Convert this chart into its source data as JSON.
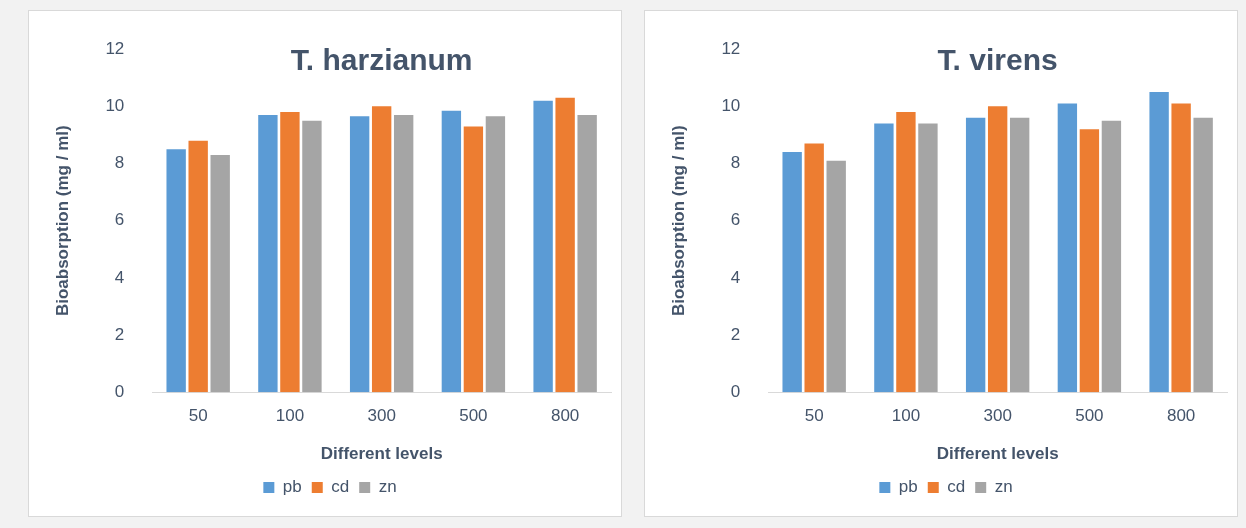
{
  "chart_data": [
    {
      "type": "bar",
      "title": "T. harzianum",
      "xlabel": "Different levels",
      "ylabel": "Bioabsorption (mg / ml)",
      "categories": [
        "50",
        "100",
        "300",
        "500",
        "800"
      ],
      "series": [
        {
          "name": "pb",
          "color": "#5b9bd5",
          "values": [
            8.5,
            9.7,
            9.65,
            9.85,
            10.2
          ]
        },
        {
          "name": "cd",
          "color": "#ed7d31",
          "values": [
            8.8,
            9.8,
            10.0,
            9.3,
            10.3
          ]
        },
        {
          "name": "zn",
          "color": "#a5a5a5",
          "values": [
            8.3,
            9.5,
            9.7,
            9.65,
            9.7
          ]
        }
      ],
      "ylim": [
        0,
        12
      ],
      "yticks": [
        0,
        2,
        4,
        6,
        8,
        10,
        12
      ],
      "grid": false,
      "legend": "bottom"
    },
    {
      "type": "bar",
      "title": "T. virens",
      "xlabel": "Different levels",
      "ylabel": "Bioabsorption (mg / ml)",
      "categories": [
        "50",
        "100",
        "300",
        "500",
        "800"
      ],
      "series": [
        {
          "name": "pb",
          "color": "#5b9bd5",
          "values": [
            8.4,
            9.4,
            9.6,
            10.1,
            10.5
          ]
        },
        {
          "name": "cd",
          "color": "#ed7d31",
          "values": [
            8.7,
            9.8,
            10.0,
            9.2,
            10.1
          ]
        },
        {
          "name": "zn",
          "color": "#a5a5a5",
          "values": [
            8.1,
            9.4,
            9.6,
            9.5,
            9.6
          ]
        }
      ],
      "ylim": [
        0,
        12
      ],
      "yticks": [
        0,
        2,
        4,
        6,
        8,
        10,
        12
      ],
      "grid": false,
      "legend": "bottom"
    }
  ]
}
